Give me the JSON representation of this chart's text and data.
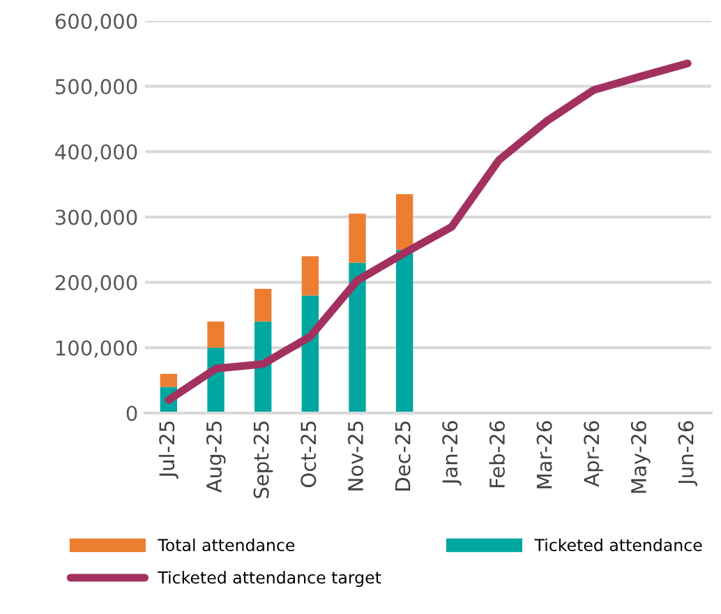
{
  "chart_data": {
    "type": "bar",
    "stacked": true,
    "categories": [
      "Jul-25",
      "Aug-25",
      "Sept-25",
      "Oct-25",
      "Nov-25",
      "Dec-25",
      "Jan-26",
      "Feb-26",
      "Mar-26",
      "Apr-26",
      "May-26",
      "Jun-26"
    ],
    "series": [
      {
        "name": "Ticketed attendance",
        "color": "#00a6a0",
        "values": [
          40000,
          100000,
          140000,
          180000,
          230000,
          250000,
          null,
          null,
          null,
          null,
          null,
          null
        ]
      },
      {
        "name": "Total attendance",
        "color": "#ed7d31",
        "values": [
          20000,
          40000,
          50000,
          60000,
          75000,
          85000,
          null,
          null,
          null,
          null,
          null,
          null
        ]
      },
      {
        "name": "Ticketed attendance target",
        "type": "line",
        "color": "#a3315f",
        "values": [
          20000,
          68000,
          75000,
          117000,
          203000,
          245000,
          285000,
          387000,
          446000,
          494000,
          515000,
          535000
        ]
      }
    ],
    "ylim": [
      0,
      600000
    ],
    "yticks": [
      {
        "value": 0,
        "label": "0"
      },
      {
        "value": 100000,
        "label": "100,000"
      },
      {
        "value": 200000,
        "label": "200,000"
      },
      {
        "value": 300000,
        "label": "300,000"
      },
      {
        "value": 400000,
        "label": "400,000"
      },
      {
        "value": 500000,
        "label": "500,000"
      },
      {
        "value": 600000,
        "label": "600,000"
      }
    ],
    "grid": "y",
    "legend": "bottom",
    "marker": "none",
    "line_style": "solid"
  }
}
